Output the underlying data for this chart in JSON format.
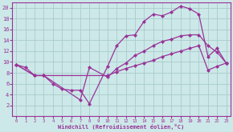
{
  "background_color": "#cce8e8",
  "grid_color": "#aacccc",
  "line_color": "#993399",
  "xlabel": "Windchill (Refroidissement éolien,°C)",
  "xlim": [
    -0.5,
    23.5
  ],
  "ylim": [
    0,
    21
  ],
  "xticks": [
    0,
    1,
    2,
    3,
    4,
    5,
    6,
    7,
    8,
    9,
    10,
    11,
    12,
    13,
    14,
    15,
    16,
    17,
    18,
    19,
    20,
    21,
    22,
    23
  ],
  "yticks": [
    2,
    4,
    6,
    8,
    10,
    12,
    14,
    16,
    18,
    20
  ],
  "line1_x": [
    0,
    1,
    2,
    3,
    4,
    5,
    6,
    7,
    8,
    10,
    11,
    12,
    13,
    14,
    15,
    16,
    17,
    18,
    19,
    20,
    21,
    22,
    23
  ],
  "line1_y": [
    9.5,
    9.0,
    7.5,
    7.5,
    6.0,
    5.0,
    4.8,
    4.8,
    2.3,
    9.2,
    13.0,
    14.8,
    15.0,
    17.5,
    18.8,
    18.5,
    19.2,
    20.3,
    19.8,
    18.8,
    11.0,
    12.5,
    9.8
  ],
  "line2_x": [
    0,
    2,
    3,
    7,
    8,
    10,
    11,
    12,
    13,
    14,
    15,
    16,
    17,
    18,
    19,
    20,
    21,
    22,
    23
  ],
  "line2_y": [
    9.5,
    7.5,
    7.5,
    3.0,
    9.0,
    7.2,
    8.8,
    9.8,
    11.2,
    12.0,
    13.0,
    13.8,
    14.2,
    14.8,
    15.0,
    15.0,
    13.0,
    11.8,
    9.8
  ],
  "line3_x": [
    0,
    2,
    3,
    10,
    11,
    12,
    13,
    14,
    15,
    16,
    17,
    18,
    19,
    20,
    21,
    22,
    23
  ],
  "line3_y": [
    9.5,
    7.5,
    7.5,
    7.5,
    8.2,
    8.8,
    9.3,
    9.8,
    10.3,
    11.0,
    11.5,
    12.0,
    12.5,
    13.0,
    8.5,
    9.2,
    9.8
  ]
}
